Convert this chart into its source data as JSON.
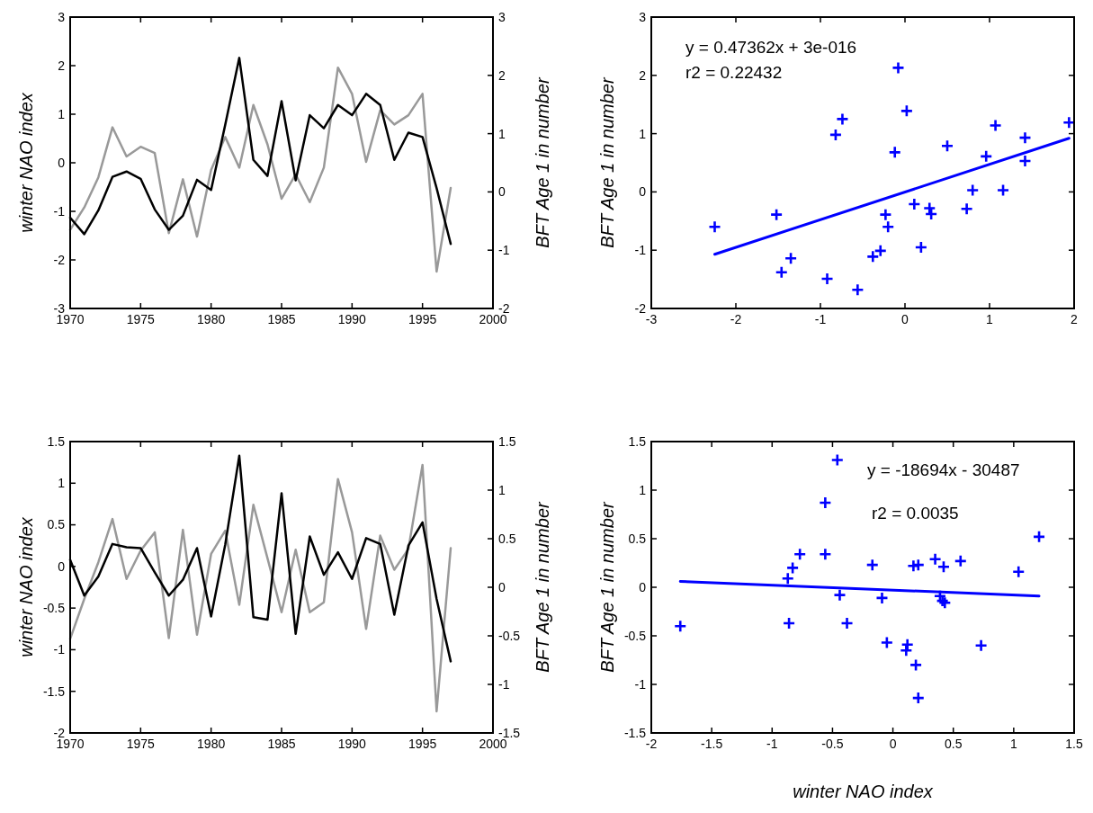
{
  "chart_data": [
    {
      "type": "line",
      "ylabel": "winter NAO index",
      "y2label": "BFT Age 1 in number",
      "x": [
        1970,
        1971,
        1972,
        1973,
        1974,
        1975,
        1976,
        1977,
        1978,
        1979,
        1980,
        1981,
        1982,
        1983,
        1984,
        1985,
        1986,
        1987,
        1988,
        1989,
        1990,
        1991,
        1992,
        1993,
        1994,
        1995,
        1996,
        1997
      ],
      "series": [
        {
          "color": "#999999",
          "values": [
            -1.38,
            -0.92,
            -0.3,
            0.73,
            0.13,
            0.33,
            0.2,
            -1.45,
            -0.34,
            -1.52,
            -0.15,
            0.53,
            -0.1,
            1.19,
            0.38,
            -0.74,
            -0.24,
            -0.81,
            -0.1,
            1.96,
            1.42,
            0.02,
            1.08,
            0.79,
            0.98,
            1.42,
            -2.24,
            -0.52
          ]
        },
        {
          "color": "#000000",
          "values": [
            -1.13,
            -1.47,
            -0.98,
            -0.29,
            -0.18,
            -0.33,
            -0.96,
            -1.38,
            -1.09,
            -0.35,
            -0.56,
            0.78,
            2.16,
            0.06,
            -0.27,
            1.27,
            -0.36,
            0.98,
            0.71,
            1.19,
            0.98,
            1.42,
            1.19,
            0.06,
            0.62,
            0.53,
            -0.52,
            -1.67
          ]
        }
      ],
      "xlim": [
        1970,
        2000
      ],
      "xticks": [
        1970,
        1975,
        1980,
        1985,
        1990,
        1995,
        2000
      ],
      "ylim": [
        -3,
        3
      ],
      "yticks": [
        -3,
        -2,
        -1,
        0,
        1,
        2,
        3
      ],
      "y2lim": [
        -2,
        3
      ],
      "y2ticks": [
        -2,
        -1,
        0,
        1,
        2,
        3
      ]
    },
    {
      "type": "scatter",
      "ylabel": "BFT Age 1 in number",
      "annotations": [
        "y = 0.47362x + 3e-016",
        "r2 = 0.22432"
      ],
      "series": [
        {
          "marker": "cross",
          "color": "#0000ff",
          "x": [
            -2.25,
            -1.52,
            -1.46,
            -1.35,
            -0.92,
            -0.82,
            -0.74,
            -0.56,
            -0.38,
            -0.29,
            -0.23,
            -0.2,
            -0.12,
            -0.08,
            0.02,
            0.11,
            0.19,
            0.29,
            0.31,
            0.5,
            0.73,
            0.8,
            0.96,
            1.07,
            1.16,
            1.42,
            1.42,
            1.94
          ],
          "values": [
            -0.6,
            -0.39,
            -1.38,
            -1.14,
            -1.49,
            0.98,
            1.25,
            -1.68,
            -1.11,
            -1.01,
            -0.39,
            -0.6,
            0.68,
            2.13,
            1.39,
            -0.21,
            -0.95,
            -0.28,
            -0.38,
            0.79,
            -0.29,
            0.03,
            0.61,
            1.14,
            0.03,
            0.93,
            0.53,
            1.19
          ]
        },
        {
          "type": "line",
          "color": "#0000ff",
          "x": [
            -2.25,
            1.94
          ],
          "values": [
            -1.07,
            0.92
          ]
        }
      ],
      "xlim": [
        -3,
        2
      ],
      "xticks": [
        -3,
        -2,
        -1,
        0,
        1,
        2
      ],
      "ylim": [
        -2,
        3
      ],
      "yticks": [
        -2,
        -1,
        0,
        1,
        2,
        3
      ]
    },
    {
      "type": "line",
      "ylabel": "winter NAO index",
      "y2label": "BFT Age 1 in number",
      "x": [
        1970,
        1971,
        1972,
        1973,
        1974,
        1975,
        1976,
        1977,
        1978,
        1979,
        1980,
        1981,
        1982,
        1983,
        1984,
        1985,
        1986,
        1987,
        1988,
        1989,
        1990,
        1991,
        1992,
        1993,
        1994,
        1995,
        1996,
        1997
      ],
      "series": [
        {
          "color": "#999999",
          "values": [
            -0.87,
            -0.39,
            0.05,
            0.57,
            -0.15,
            0.19,
            0.41,
            -0.86,
            0.44,
            -0.82,
            0.15,
            0.43,
            -0.46,
            0.74,
            0.1,
            -0.55,
            0.2,
            -0.55,
            -0.43,
            1.05,
            0.41,
            -0.75,
            0.37,
            -0.04,
            0.21,
            1.22,
            -1.74,
            0.22
          ]
        },
        {
          "color": "#000000",
          "values": [
            0.08,
            -0.35,
            -0.12,
            0.27,
            0.23,
            0.22,
            -0.07,
            -0.35,
            -0.16,
            0.22,
            -0.6,
            0.26,
            1.33,
            -0.61,
            -0.64,
            0.88,
            -0.81,
            0.36,
            -0.1,
            0.17,
            -0.15,
            0.34,
            0.27,
            -0.58,
            0.25,
            0.53,
            -0.39,
            -1.14
          ]
        }
      ],
      "xlim": [
        1970,
        2000
      ],
      "xticks": [
        1970,
        1975,
        1980,
        1985,
        1990,
        1995,
        2000
      ],
      "ylim": [
        -2,
        1.5
      ],
      "yticks": [
        -2,
        -1.5,
        -1,
        -0.5,
        0,
        0.5,
        1,
        1.5
      ],
      "y2lim": [
        -1.5,
        1.5
      ],
      "y2ticks": [
        -1.5,
        -1,
        -0.5,
        0,
        0.5,
        1,
        1.5
      ]
    },
    {
      "type": "scatter",
      "xlabel": "winter NAO index",
      "ylabel": "BFT Age 1 in number",
      "annotations": [
        "y = -18694x - 30487",
        "r2 = 0.0035"
      ],
      "series": [
        {
          "marker": "cross",
          "color": "#0000ff",
          "x": [
            -1.76,
            -0.87,
            -0.83,
            -0.86,
            -0.77,
            -0.56,
            -0.56,
            -0.46,
            -0.44,
            -0.38,
            -0.17,
            -0.09,
            -0.05,
            0.12,
            0.11,
            0.17,
            0.21,
            0.19,
            0.21,
            0.35,
            0.39,
            0.41,
            0.42,
            0.43,
            0.56,
            0.73,
            1.04,
            1.21
          ],
          "values": [
            -0.4,
            0.09,
            0.2,
            -0.37,
            0.34,
            0.87,
            0.34,
            1.31,
            -0.08,
            -0.37,
            0.23,
            -0.11,
            -0.57,
            -0.59,
            -0.65,
            0.22,
            0.23,
            -0.8,
            -1.14,
            0.29,
            -0.09,
            -0.14,
            0.21,
            -0.16,
            0.27,
            -0.6,
            0.16,
            0.52
          ]
        },
        {
          "type": "line",
          "color": "#0000ff",
          "x": [
            -1.76,
            1.21
          ],
          "values": [
            0.06,
            -0.09
          ]
        }
      ],
      "xlim": [
        -2,
        1.5
      ],
      "xticks": [
        -2,
        -1.5,
        -1,
        -0.5,
        0,
        0.5,
        1,
        1.5
      ],
      "ylim": [
        -1.5,
        1.5
      ],
      "yticks": [
        -1.5,
        -1,
        -0.5,
        0,
        0.5,
        1,
        1.5
      ]
    }
  ]
}
